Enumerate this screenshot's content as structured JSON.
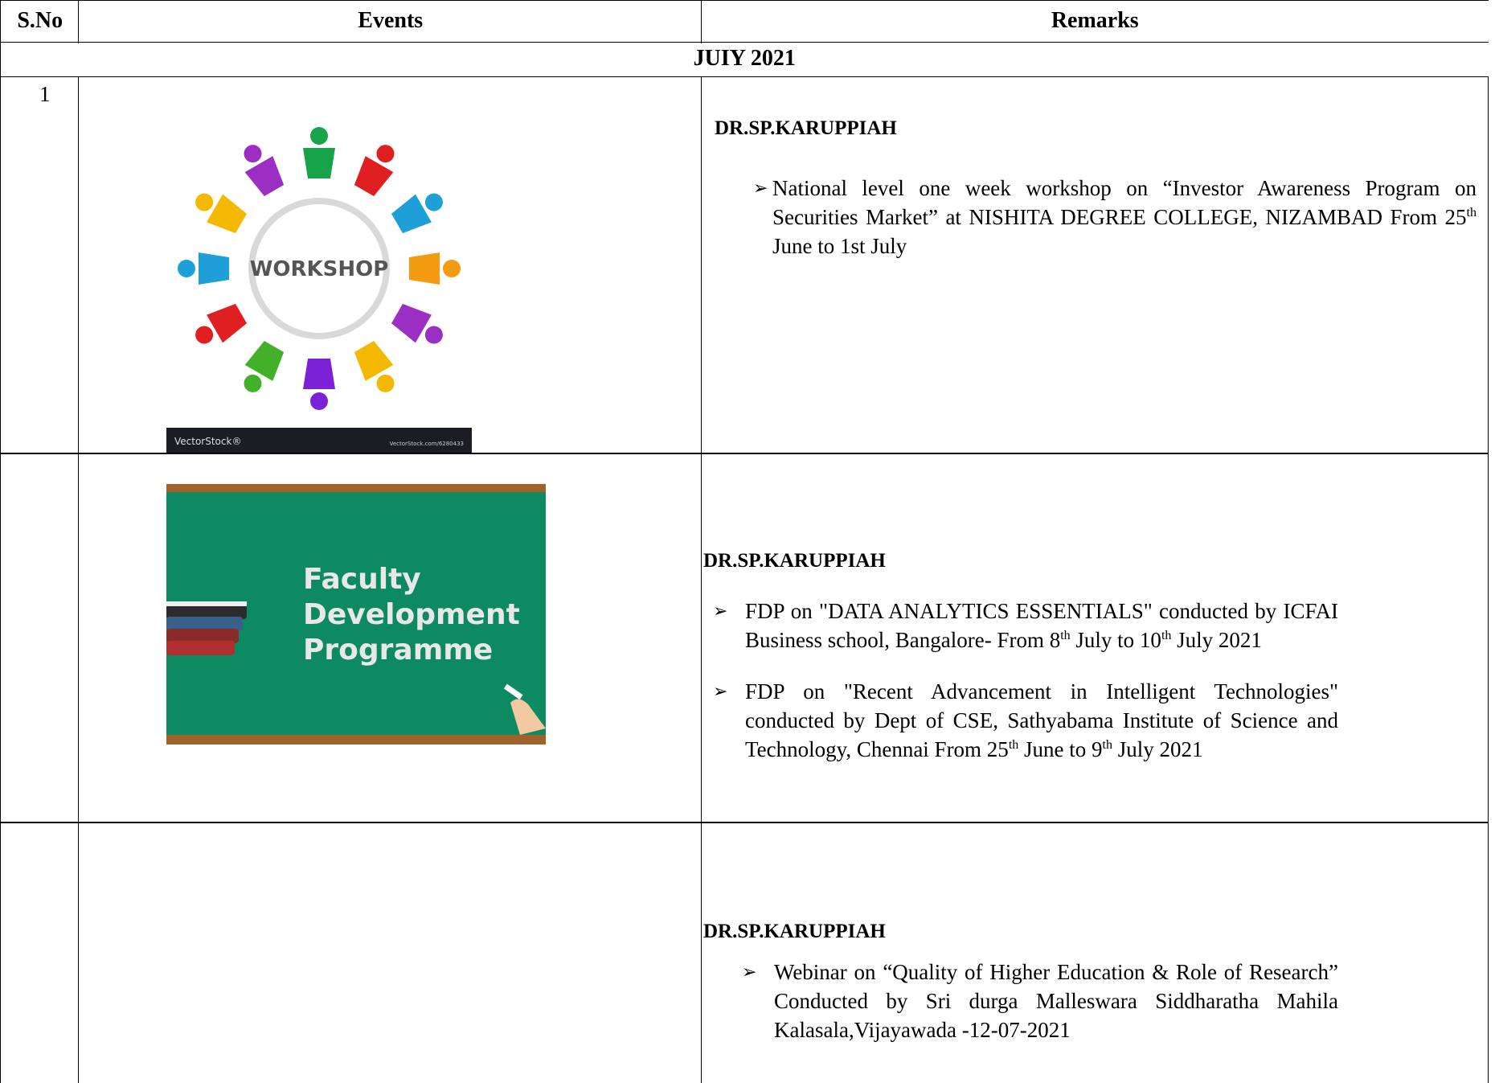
{
  "table": {
    "header": [
      "S.No",
      "Events",
      "Remarks"
    ],
    "month": "JUIY 2021",
    "rows": [
      {
        "sno": "1",
        "image": {
          "caption": "WORKSHOP",
          "brand": "VectorStock®",
          "url": "VectorStock.com/6280433"
        },
        "name": "DR.SP.KARUPPIAH",
        "bullets": [
          [
            "National level one week workshop on “Investor Awareness Program on Securities Market” at NISHITA DEGREE COLLEGE, NIZAMBAD From 25",
            {
              "sup": "th"
            },
            " June to 1st July"
          ]
        ]
      },
      {
        "sno": null,
        "image": {
          "lines": [
            "Faculty",
            "Development",
            "Programme"
          ]
        },
        "name": "DR.SP.KARUPPIAH",
        "bullets": [
          [
            "FDP on \"DATA ANALYTICS ESSENTIALS\" conducted by ICFAI Business school, Bangalore- From 8",
            {
              "sup": "th"
            },
            " July to 10",
            {
              "sup": "th"
            },
            " July 2021"
          ],
          [
            "FDP on \"Recent Advancement in Intelligent Technologies\" conducted by Dept of CSE, Sathyabama Institute of Science and Technology, Chennai From 25",
            {
              "sup": "th"
            },
            " June to 9",
            {
              "sup": "th"
            },
            " July  2021"
          ]
        ]
      },
      {
        "sno": null,
        "image": null,
        "name": "DR.SP.KARUPPIAH",
        "bullets": [
          [
            "Webinar on “Quality of Higher Education & Role of Research” Conducted by Sri durga Malleswara Siddharatha Mahila Kalasala,Vijayawada -12-07-2021"
          ]
        ]
      }
    ]
  }
}
